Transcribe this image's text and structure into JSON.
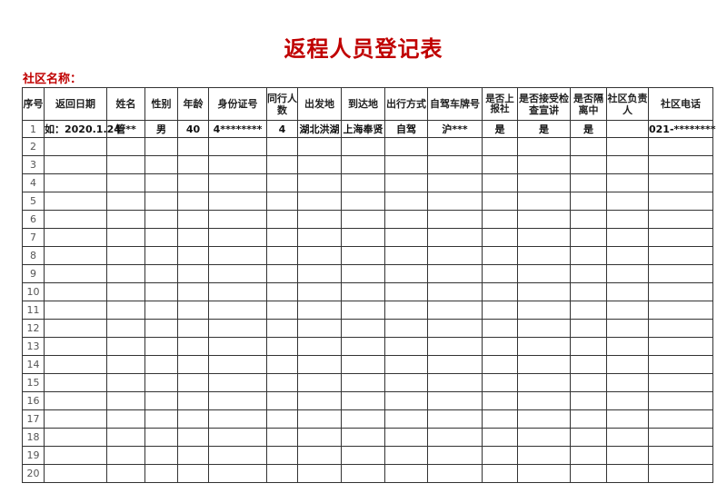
{
  "title": "返程人员登记表",
  "community_label": "社区名称：",
  "colors": {
    "title": "#c00000",
    "border": "#333333"
  },
  "columns": [
    "序号",
    "返回日期",
    "姓名",
    "性别",
    "年龄",
    "身份证号",
    "同行人数",
    "出发地",
    "到达地",
    "出行方式",
    "自驾车牌号",
    "是否上报社",
    "是否接受检查宣讲",
    "是否隔离中",
    "社区负责人",
    "社区电话"
  ],
  "rows": [
    [
      "1",
      "如：2020.1.24",
      "管**",
      "男",
      "40",
      "4********",
      "4",
      "湖北洪湖",
      "上海奉贤",
      "自驾",
      "沪***",
      "是",
      "是",
      "是",
      "",
      "021-********"
    ],
    [
      "2"
    ],
    [
      "3"
    ],
    [
      "4"
    ],
    [
      "5"
    ],
    [
      "6"
    ],
    [
      "7"
    ],
    [
      "8"
    ],
    [
      "9"
    ],
    [
      "10"
    ],
    [
      "11"
    ],
    [
      "12"
    ],
    [
      "13"
    ],
    [
      "14"
    ],
    [
      "15"
    ],
    [
      "16"
    ],
    [
      "17"
    ],
    [
      "18"
    ],
    [
      "19"
    ],
    [
      "20"
    ]
  ]
}
